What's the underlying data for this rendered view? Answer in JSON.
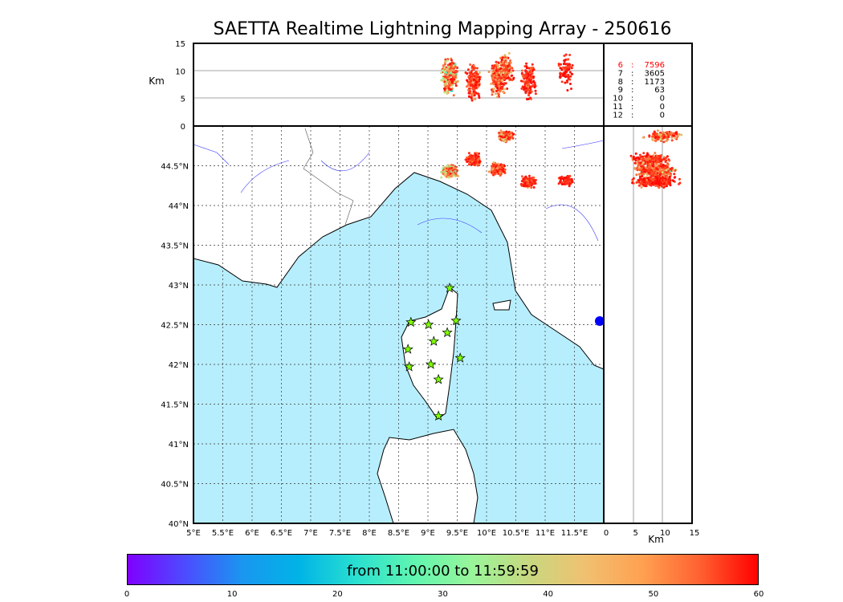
{
  "title": "SAETTA Realtime Lightning Mapping Array - 250616",
  "colors": {
    "sea": "#b7eefd",
    "land": "#ffffff",
    "station": "#7fff00"
  },
  "altitude_panel": {
    "ylabel": "Km",
    "yticks": [
      "15",
      "10",
      "5",
      "0"
    ],
    "ylim": [
      0,
      15
    ]
  },
  "side_panel": {
    "xlabel": "Km",
    "xticks": [
      "0",
      "5",
      "10",
      "15"
    ],
    "xlim": [
      0,
      15
    ]
  },
  "map": {
    "lon_ticks": [
      "5°E",
      "5.5°E",
      "6°E",
      "6.5°E",
      "7°E",
      "7.5°E",
      "8°E",
      "8.5°E",
      "9°E",
      "9.5°E",
      "10°E",
      "10.5°E",
      "11°E",
      "11.5°E"
    ],
    "lat_ticks": [
      "40°N",
      "40.5°N",
      "41°N",
      "41.5°N",
      "42°N",
      "42.5°N",
      "43°N",
      "43.5°N",
      "44°N",
      "44.5°N"
    ],
    "lon_range": [
      5,
      12
    ],
    "lat_range": [
      40,
      45
    ]
  },
  "stats": [
    {
      "n": "6",
      "sep": ":",
      "count": "7596",
      "highlight": true
    },
    {
      "n": "7",
      "sep": ":",
      "count": "3605"
    },
    {
      "n": "8",
      "sep": ":",
      "count": "1173"
    },
    {
      "n": "9",
      "sep": ":",
      "count": "63"
    },
    {
      "n": "10",
      "sep": ":",
      "count": "0"
    },
    {
      "n": "11",
      "sep": ":",
      "count": "0"
    },
    {
      "n": "12",
      "sep": ":",
      "count": "0"
    }
  ],
  "colorbar": {
    "label": "from 11:00:00 to 11:59:59",
    "ticks": [
      "0",
      "10",
      "20",
      "30",
      "40",
      "50",
      "60"
    ],
    "range": [
      0,
      60
    ]
  },
  "chart_data": {
    "type": "scatter",
    "stations": [
      [
        9.37,
        42.96
      ],
      [
        8.71,
        42.53
      ],
      [
        9.01,
        42.5
      ],
      [
        9.48,
        42.55
      ],
      [
        9.33,
        42.4
      ],
      [
        9.1,
        42.29
      ],
      [
        8.66,
        42.19
      ],
      [
        8.68,
        41.97
      ],
      [
        9.05,
        42.0
      ],
      [
        9.55,
        42.08
      ],
      [
        9.18,
        41.81
      ],
      [
        9.18,
        41.35
      ]
    ],
    "clusters": [
      {
        "lon": 9.37,
        "lat": 44.43,
        "alt": 9,
        "n": 260,
        "tmin": 15,
        "tmax": 60
      },
      {
        "lon": 9.78,
        "lat": 44.58,
        "alt": 8,
        "n": 180,
        "tmin": 40,
        "tmax": 60
      },
      {
        "lon": 10.19,
        "lat": 44.46,
        "alt": 8.5,
        "n": 220,
        "tmin": 35,
        "tmax": 60
      },
      {
        "lon": 10.33,
        "lat": 44.88,
        "alt": 10,
        "n": 150,
        "tmin": 30,
        "tmax": 60
      },
      {
        "lon": 10.72,
        "lat": 44.3,
        "alt": 8,
        "n": 150,
        "tmin": 45,
        "tmax": 60
      },
      {
        "lon": 11.36,
        "lat": 44.31,
        "alt": 10,
        "n": 80,
        "tmin": 50,
        "tmax": 60
      }
    ]
  }
}
